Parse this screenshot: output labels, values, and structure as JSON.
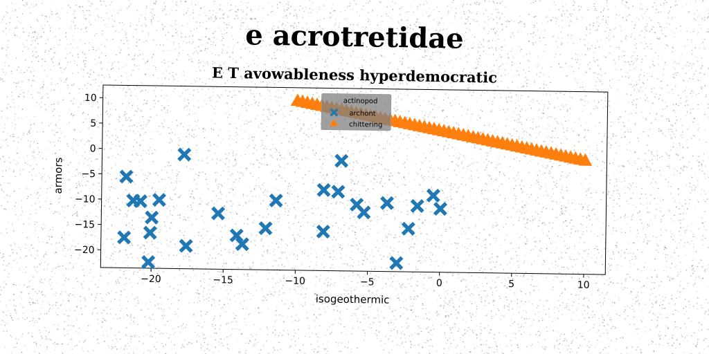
{
  "suptitle": "e acrotretidae",
  "chart_data": {
    "type": "scatter",
    "title": "E T avowableness hyperdemocratic",
    "xlabel": "isogeothermic",
    "ylabel": "armors",
    "xlim": [
      -23.5,
      11.5
    ],
    "ylim": [
      -23.5,
      12.5
    ],
    "xticks": [
      -20,
      -15,
      -10,
      -5,
      0,
      5,
      10
    ],
    "yticks": [
      10,
      5,
      0,
      -5,
      -10,
      -15,
      -20
    ],
    "grid": false,
    "legend": {
      "title": "actinopod",
      "placement": "top-center"
    },
    "series": [
      {
        "name": "archont",
        "marker": "x-filled",
        "color": "#1f77b4",
        "points": [
          [
            -21.8,
            -5.5
          ],
          [
            -21.9,
            -17.5
          ],
          [
            -21.3,
            -10.2
          ],
          [
            -20.8,
            -10.3
          ],
          [
            -20.1,
            -16.5
          ],
          [
            -20.0,
            -13.5
          ],
          [
            -19.5,
            -10.0
          ],
          [
            -20.2,
            -22.3
          ],
          [
            -17.6,
            -19.0
          ],
          [
            -17.8,
            -1.0
          ],
          [
            -15.4,
            -12.5
          ],
          [
            -14.1,
            -16.8
          ],
          [
            -13.7,
            -18.5
          ],
          [
            -12.1,
            -15.3
          ],
          [
            -11.4,
            -9.8
          ],
          [
            -8.1,
            -7.6
          ],
          [
            -8.1,
            -15.8
          ],
          [
            -7.1,
            -7.9
          ],
          [
            -6.9,
            -1.8
          ],
          [
            -5.8,
            -10.4
          ],
          [
            -5.3,
            -11.9
          ],
          [
            -3.7,
            -10.0
          ],
          [
            -3.0,
            -21.8
          ],
          [
            -2.2,
            -15.0
          ],
          [
            -1.6,
            -10.5
          ],
          [
            -0.5,
            -8.4
          ],
          [
            0.0,
            -11.0
          ]
        ]
      },
      {
        "name": "chittering",
        "marker": "triangle-up",
        "color": "#ff7f0e",
        "x_start": -10.0,
        "x_end": 10.0,
        "y_start": 10.0,
        "y_end": -1.0,
        "count": 60
      }
    ]
  }
}
